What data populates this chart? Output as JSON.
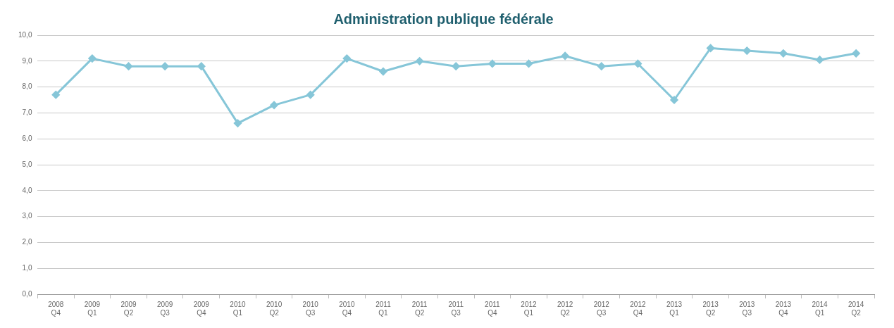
{
  "chart_data": {
    "type": "line",
    "title": "Administration publique fédérale",
    "categories": [
      "2008 Q4",
      "2009 Q1",
      "2009 Q2",
      "2009 Q3",
      "2009 Q4",
      "2010 Q1",
      "2010 Q2",
      "2010 Q3",
      "2010 Q4",
      "2011 Q1",
      "2011 Q2",
      "2011 Q3",
      "2011 Q4",
      "2012 Q1",
      "2012 Q2",
      "2012 Q3",
      "2012 Q4",
      "2013 Q1",
      "2013 Q2",
      "2013 Q3",
      "2013 Q4",
      "2014 Q1",
      "2014 Q2"
    ],
    "series": [
      {
        "color": "#86c6d8",
        "values": [
          7.7,
          9.1,
          8.8,
          8.8,
          8.8,
          6.6,
          7.3,
          7.7,
          9.1,
          8.6,
          9.0,
          8.8,
          8.9,
          8.9,
          9.2,
          8.8,
          8.9,
          7.5,
          9.5,
          9.4,
          9.3,
          9.05,
          9.3
        ]
      }
    ],
    "ylim": [
      0,
      10
    ],
    "yticks": [
      {
        "value": 0,
        "label": "0,0"
      },
      {
        "value": 1,
        "label": "1,0"
      },
      {
        "value": 2,
        "label": "2,0"
      },
      {
        "value": 3,
        "label": "3,0"
      },
      {
        "value": 4,
        "label": "4,0"
      },
      {
        "value": 5,
        "label": "5,0"
      },
      {
        "value": 6,
        "label": "6,0"
      },
      {
        "value": 7,
        "label": "7,0"
      },
      {
        "value": 8,
        "label": "8,0"
      },
      {
        "value": 9,
        "label": "9,0"
      },
      {
        "value": 10,
        "label": "10,0"
      }
    ],
    "grid": "y",
    "legend": false,
    "marker": "diamond",
    "line_style": "solid"
  }
}
